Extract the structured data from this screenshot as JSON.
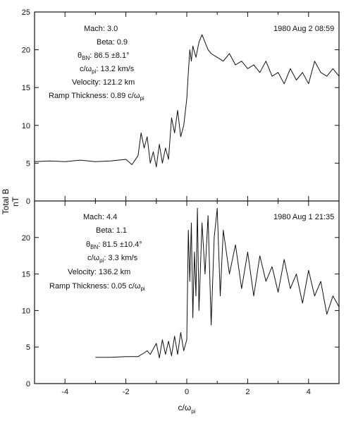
{
  "figure": {
    "y_axis_label_line1": "Total B",
    "y_axis_label_line2": "nT",
    "x_axis_label_main": "c/ω",
    "x_axis_label_sub": "pi"
  },
  "chart_data": [
    {
      "type": "line",
      "panel": "top",
      "date_label": "1980 Aug 2 08:59",
      "annotations": {
        "mach": "Mach: 3.0",
        "beta": "Beta: 0.9",
        "theta_prefix": "θ",
        "theta_sub": "BN",
        "theta_value": ": 86.5 ±8.1°",
        "inertial_prefix": "c/ω",
        "inertial_sub": "pi",
        "inertial_value": ": 13.2 km/s",
        "velocity": "Velocity: 121.2 km",
        "ramp_prefix": "Ramp Thickness: 0.89 c/ω",
        "ramp_sub": "pi"
      },
      "xlim": [
        -5,
        5
      ],
      "ylim": [
        0,
        25
      ],
      "x_ticks": [
        -4,
        -2,
        0,
        2,
        4
      ],
      "y_ticks": [
        0,
        5,
        10,
        15,
        20,
        25
      ],
      "x": [
        -5.0,
        -4.5,
        -4.0,
        -3.5,
        -3.0,
        -2.5,
        -2.0,
        -1.8,
        -1.6,
        -1.5,
        -1.4,
        -1.3,
        -1.2,
        -1.1,
        -1.0,
        -0.9,
        -0.8,
        -0.7,
        -0.6,
        -0.5,
        -0.4,
        -0.3,
        -0.2,
        -0.1,
        0.0,
        0.05,
        0.1,
        0.15,
        0.2,
        0.3,
        0.4,
        0.5,
        0.6,
        0.7,
        0.8,
        1.0,
        1.2,
        1.4,
        1.6,
        1.8,
        2.0,
        2.2,
        2.4,
        2.6,
        2.8,
        3.0,
        3.2,
        3.4,
        3.6,
        3.8,
        4.0,
        4.2,
        4.4,
        4.6,
        4.8,
        5.0
      ],
      "y": [
        5.2,
        5.3,
        5.2,
        5.4,
        5.2,
        5.3,
        5.5,
        4.8,
        6.0,
        9.0,
        7.0,
        8.5,
        5.0,
        6.5,
        4.5,
        7.5,
        5.0,
        7.0,
        5.5,
        11.0,
        9.0,
        12.0,
        8.5,
        10.0,
        13.5,
        17.0,
        20.0,
        18.5,
        20.5,
        19.0,
        21.0,
        22.0,
        21.0,
        20.0,
        19.5,
        19.0,
        18.5,
        19.5,
        18.0,
        18.5,
        17.5,
        18.0,
        17.0,
        18.5,
        16.5,
        17.0,
        15.5,
        17.5,
        16.0,
        17.0,
        15.5,
        18.5,
        17.0,
        16.5,
        17.5,
        16.5
      ]
    },
    {
      "type": "line",
      "panel": "bottom",
      "date_label": "1980 Aug 1 21:35",
      "annotations": {
        "mach": "Mach: 4.4",
        "beta": "Beta: 1.1",
        "theta_prefix": "θ",
        "theta_sub": "BN",
        "theta_value": ": 81.5 ±10.4°",
        "inertial_prefix": "c/ω",
        "inertial_sub": "pi",
        "inertial_value": ": 3.3 km/s",
        "velocity": "Velocity: 136.2 km",
        "ramp_prefix": "Ramp Thickness: 0.05 c/ω",
        "ramp_sub": "pi"
      },
      "xlim": [
        -5,
        5
      ],
      "ylim": [
        0,
        25
      ],
      "x_ticks": [
        -4,
        -2,
        0,
        2,
        4
      ],
      "y_ticks": [
        0,
        5,
        10,
        15,
        20
      ],
      "x": [
        -3.0,
        -2.5,
        -2.0,
        -1.6,
        -1.4,
        -1.3,
        -1.2,
        -1.0,
        -0.9,
        -0.8,
        -0.7,
        -0.6,
        -0.5,
        -0.4,
        -0.3,
        -0.2,
        -0.1,
        0.0,
        0.05,
        0.1,
        0.15,
        0.2,
        0.25,
        0.3,
        0.35,
        0.4,
        0.5,
        0.6,
        0.7,
        0.8,
        0.9,
        1.0,
        1.1,
        1.2,
        1.4,
        1.6,
        1.8,
        2.0,
        2.2,
        2.4,
        2.6,
        2.8,
        3.0,
        3.2,
        3.4,
        3.6,
        3.8,
        4.0,
        4.2,
        4.4,
        4.6,
        4.8,
        5.0
      ],
      "y": [
        3.6,
        3.6,
        3.7,
        3.7,
        4.2,
        4.5,
        4.0,
        5.5,
        3.5,
        6.0,
        4.0,
        5.8,
        3.8,
        6.5,
        4.0,
        7.0,
        4.5,
        6.0,
        21.0,
        14.0,
        22.0,
        9.0,
        18.0,
        12.0,
        24.0,
        10.0,
        22.0,
        15.0,
        23.0,
        8.0,
        20.0,
        24.0,
        12.0,
        21.0,
        15.0,
        19.0,
        13.0,
        18.0,
        12.0,
        17.5,
        14.0,
        16.0,
        12.5,
        17.0,
        13.0,
        15.0,
        11.0,
        15.5,
        12.0,
        14.0,
        9.5,
        12.0,
        10.5
      ]
    }
  ]
}
